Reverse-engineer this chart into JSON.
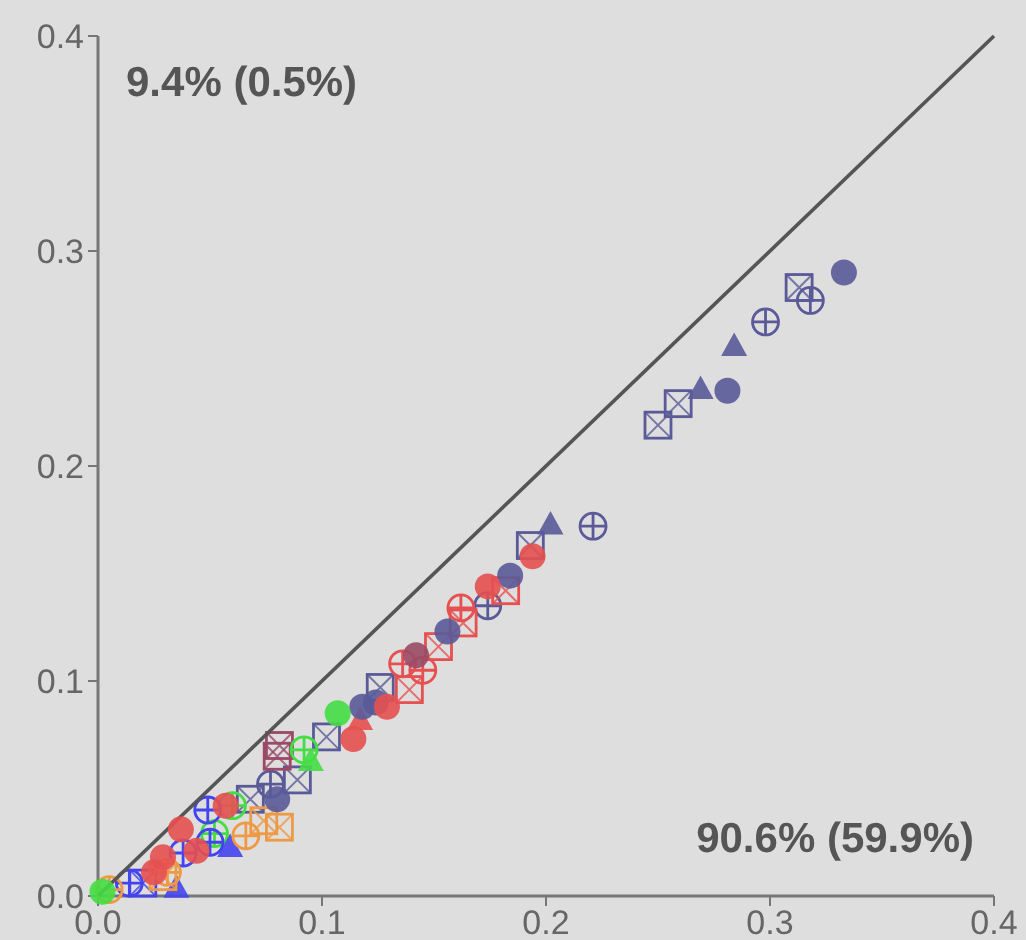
{
  "chart_data": {
    "type": "scatter",
    "annotations": [
      "9.4% (0.5%)",
      "90.6% (59.9%)"
    ],
    "xlim": [
      0,
      0.4
    ],
    "ylim": [
      0,
      0.4
    ],
    "xticks": [
      {
        "value": 0,
        "label": "0.0"
      },
      0.1,
      0.2,
      0.3,
      0.4
    ],
    "yticks": [
      {
        "value": 0,
        "label": "0.0"
      },
      0.1,
      0.2,
      0.3,
      0.4
    ],
    "grid": false,
    "series": [
      {
        "color": "#5a5a99",
        "marker": "circle",
        "x": [
          0.333,
          0.281,
          0.184,
          0.156,
          0.118,
          0.124,
          0.08
        ],
        "values": [
          0.29,
          0.235,
          0.149,
          0.123,
          0.088,
          0.09,
          0.045
        ]
      },
      {
        "color": "#5a5a99",
        "marker": "triangle",
        "x": [
          0.284,
          0.269,
          0.202
        ],
        "values": [
          0.256,
          0.236,
          0.173
        ]
      },
      {
        "color": "#5a5a99",
        "marker": "square",
        "x": [
          0.313,
          0.259,
          0.25,
          0.193,
          0.126,
          0.102,
          0.089,
          0.068
        ],
        "values": [
          0.283,
          0.229,
          0.219,
          0.163,
          0.097,
          0.074,
          0.054,
          0.045
        ]
      },
      {
        "color": "#5a5a99",
        "marker": "cross",
        "x": [
          0.318,
          0.298,
          0.221,
          0.174,
          0.077
        ],
        "values": [
          0.277,
          0.267,
          0.172,
          0.135,
          0.052
        ]
      },
      {
        "color": "#e65050",
        "marker": "circle",
        "x": [
          0.194,
          0.174,
          0.129,
          0.114,
          0.057,
          0.037,
          0.044,
          0.029,
          0.025
        ],
        "values": [
          0.158,
          0.144,
          0.088,
          0.073,
          0.042,
          0.031,
          0.021,
          0.018,
          0.011
        ]
      },
      {
        "color": "#e65050",
        "marker": "triangle",
        "x": [
          0.117
        ],
        "values": [
          0.082
        ]
      },
      {
        "color": "#e65050",
        "marker": "square",
        "x": [
          0.182,
          0.163,
          0.152,
          0.139
        ],
        "values": [
          0.142,
          0.127,
          0.116,
          0.096
        ]
      },
      {
        "color": "#e65050",
        "marker": "cross",
        "x": [
          0.162,
          0.136,
          0.145
        ],
        "values": [
          0.134,
          0.108,
          0.105
        ]
      },
      {
        "color": "#9a4a66",
        "marker": "circle",
        "x": [
          0.142
        ],
        "values": [
          0.112
        ]
      },
      {
        "color": "#9a4a66",
        "marker": "square",
        "x": [
          0.081,
          0.08
        ],
        "values": [
          0.07,
          0.065
        ]
      },
      {
        "color": "#44dd44",
        "marker": "circle",
        "x": [
          0.107,
          0.002
        ],
        "values": [
          0.085,
          0.002
        ]
      },
      {
        "color": "#44dd44",
        "marker": "triangle",
        "x": [
          0.095
        ],
        "values": [
          0.063
        ]
      },
      {
        "color": "#44dd44",
        "marker": "cross",
        "x": [
          0.092,
          0.06,
          0.052
        ],
        "values": [
          0.068,
          0.042,
          0.029
        ]
      },
      {
        "color": "#4444ee",
        "marker": "cross",
        "x": [
          0.049,
          0.05,
          0.038,
          0.014
        ],
        "values": [
          0.04,
          0.025,
          0.02,
          0.006
        ]
      },
      {
        "color": "#4444ee",
        "marker": "triangle",
        "x": [
          0.059,
          0.035
        ],
        "values": [
          0.023,
          0.004
        ]
      },
      {
        "color": "#4444ee",
        "marker": "square",
        "x": [
          0.02
        ],
        "values": [
          0.006
        ]
      },
      {
        "color": "#ee9944",
        "marker": "square",
        "x": [
          0.081,
          0.029,
          0.074
        ],
        "values": [
          0.032,
          0.009,
          0.035
        ]
      },
      {
        "color": "#ee9944",
        "marker": "cross",
        "x": [
          0.066,
          0.031,
          0.005
        ],
        "values": [
          0.028,
          0.011,
          0.003
        ]
      },
      {
        "type": "line",
        "color": "#555555",
        "line_style": "solid",
        "x": [
          0,
          0.4
        ],
        "values": [
          0,
          0.4
        ]
      }
    ]
  }
}
